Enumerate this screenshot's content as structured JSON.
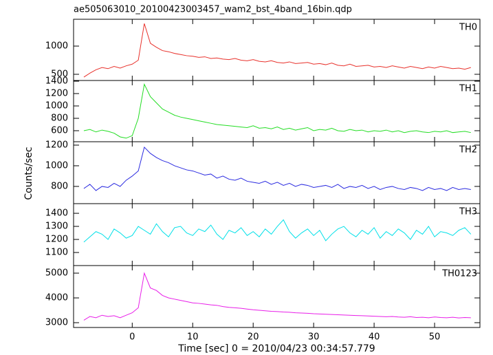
{
  "chart_data": [
    {
      "type": "line",
      "title": "ae505063010_20100423003457_wam2_bst_4band_16bin.qdp",
      "x": [
        -8,
        -7,
        -6,
        -5,
        -4,
        -3,
        -2,
        -1,
        0,
        1,
        2,
        3,
        4,
        5,
        6,
        7,
        8,
        9,
        10,
        11,
        12,
        13,
        14,
        15,
        16,
        17,
        18,
        19,
        20,
        21,
        22,
        23,
        24,
        25,
        26,
        27,
        28,
        29,
        30,
        31,
        32,
        33,
        34,
        35,
        36,
        37,
        38,
        39,
        40,
        41,
        42,
        43,
        44,
        45,
        46,
        47,
        48,
        49,
        50,
        51,
        52,
        53,
        54,
        55,
        56
      ],
      "series": [
        {
          "name": "TH0",
          "color": "#e8302a",
          "values": [
            450,
            520,
            580,
            620,
            600,
            640,
            610,
            650,
            680,
            750,
            1400,
            1050,
            980,
            920,
            900,
            870,
            850,
            830,
            820,
            800,
            810,
            780,
            790,
            770,
            760,
            780,
            750,
            740,
            760,
            730,
            720,
            740,
            710,
            700,
            720,
            690,
            700,
            710,
            680,
            690,
            670,
            700,
            660,
            650,
            680,
            640,
            650,
            660,
            630,
            640,
            620,
            650,
            630,
            610,
            640,
            620,
            600,
            630,
            610,
            640,
            620,
            600,
            610,
            590,
            620
          ]
        }
      ],
      "xlim": [
        -9.7,
        57.5
      ],
      "xticks": [
        0,
        10,
        20,
        30,
        40,
        50
      ],
      "ylim": [
        390,
        1476
      ],
      "yticks": [
        500,
        1000
      ]
    },
    {
      "type": "line",
      "x": [
        -8,
        -7,
        -6,
        -5,
        -4,
        -3,
        -2,
        -1,
        0,
        1,
        2,
        3,
        4,
        5,
        6,
        7,
        8,
        9,
        10,
        11,
        12,
        13,
        14,
        15,
        16,
        17,
        18,
        19,
        20,
        21,
        22,
        23,
        24,
        25,
        26,
        27,
        28,
        29,
        30,
        31,
        32,
        33,
        34,
        35,
        36,
        37,
        38,
        39,
        40,
        41,
        42,
        43,
        44,
        45,
        46,
        47,
        48,
        49,
        50,
        51,
        52,
        53,
        54,
        55,
        56
      ],
      "series": [
        {
          "name": "TH1",
          "color": "#22dd22",
          "values": [
            600,
            620,
            580,
            610,
            590,
            560,
            500,
            480,
            520,
            800,
            1350,
            1150,
            1050,
            950,
            900,
            850,
            820,
            800,
            780,
            760,
            740,
            720,
            700,
            690,
            680,
            670,
            660,
            650,
            680,
            640,
            650,
            630,
            660,
            620,
            640,
            610,
            630,
            650,
            600,
            620,
            610,
            640,
            600,
            590,
            620,
            600,
            610,
            580,
            600,
            590,
            610,
            580,
            600,
            570,
            590,
            600,
            580,
            570,
            590,
            580,
            600,
            570,
            580,
            590,
            570
          ]
        }
      ],
      "xlim": [
        -9.7,
        57.5
      ],
      "xticks": [
        0,
        10,
        20,
        30,
        40,
        50
      ],
      "ylim": [
        422,
        1411
      ],
      "yticks": [
        600,
        800,
        1000,
        1200,
        1400
      ]
    },
    {
      "type": "line",
      "ylabel": "Counts/sec",
      "x": [
        -8,
        -7,
        -6,
        -5,
        -4,
        -3,
        -2,
        -1,
        0,
        1,
        2,
        3,
        4,
        5,
        6,
        7,
        8,
        9,
        10,
        11,
        12,
        13,
        14,
        15,
        16,
        17,
        18,
        19,
        20,
        21,
        22,
        23,
        24,
        25,
        26,
        27,
        28,
        29,
        30,
        31,
        32,
        33,
        34,
        35,
        36,
        37,
        38,
        39,
        40,
        41,
        42,
        43,
        44,
        45,
        46,
        47,
        48,
        49,
        50,
        51,
        52,
        53,
        54,
        55,
        56
      ],
      "series": [
        {
          "name": "TH2",
          "color": "#2a2ae0",
          "values": [
            780,
            820,
            760,
            800,
            790,
            830,
            800,
            860,
            900,
            950,
            1180,
            1120,
            1080,
            1050,
            1030,
            1000,
            980,
            960,
            950,
            930,
            910,
            920,
            880,
            900,
            870,
            860,
            880,
            850,
            840,
            830,
            850,
            820,
            840,
            810,
            830,
            800,
            820,
            810,
            790,
            800,
            810,
            790,
            820,
            780,
            800,
            790,
            810,
            780,
            800,
            770,
            790,
            800,
            780,
            770,
            790,
            780,
            760,
            790,
            770,
            780,
            760,
            790,
            770,
            780,
            770
          ]
        }
      ],
      "xlim": [
        -9.7,
        57.5
      ],
      "xticks": [
        0,
        10,
        20,
        30,
        40,
        50
      ],
      "ylim": [
        633,
        1233
      ],
      "yticks": [
        800,
        1000,
        1200
      ]
    },
    {
      "type": "line",
      "x": [
        -8,
        -7,
        -6,
        -5,
        -4,
        -3,
        -2,
        -1,
        0,
        1,
        2,
        3,
        4,
        5,
        6,
        7,
        8,
        9,
        10,
        11,
        12,
        13,
        14,
        15,
        16,
        17,
        18,
        19,
        20,
        21,
        22,
        23,
        24,
        25,
        26,
        27,
        28,
        29,
        30,
        31,
        32,
        33,
        34,
        35,
        36,
        37,
        38,
        39,
        40,
        41,
        42,
        43,
        44,
        45,
        46,
        47,
        48,
        49,
        50,
        51,
        52,
        53,
        54,
        55,
        56
      ],
      "series": [
        {
          "name": "TH3",
          "color": "#00e0e8",
          "values": [
            1180,
            1220,
            1260,
            1240,
            1200,
            1280,
            1250,
            1210,
            1230,
            1300,
            1270,
            1240,
            1320,
            1260,
            1220,
            1290,
            1300,
            1250,
            1230,
            1280,
            1260,
            1310,
            1240,
            1200,
            1270,
            1250,
            1290,
            1230,
            1260,
            1220,
            1280,
            1240,
            1300,
            1350,
            1260,
            1210,
            1250,
            1280,
            1230,
            1270,
            1190,
            1240,
            1280,
            1300,
            1250,
            1220,
            1270,
            1240,
            1290,
            1210,
            1260,
            1230,
            1280,
            1250,
            1200,
            1270,
            1240,
            1300,
            1220,
            1260,
            1250,
            1230,
            1270,
            1290,
            1240
          ]
        }
      ],
      "xlim": [
        -9.7,
        57.5
      ],
      "xticks": [
        0,
        10,
        20,
        30,
        40,
        50
      ],
      "ylim": [
        1000,
        1474
      ],
      "yticks": [
        1100,
        1200,
        1300,
        1400
      ]
    },
    {
      "type": "line",
      "xlabel": "Time [sec] 0 = 2010/04/23 00:34:57.779",
      "x": [
        -8,
        -7,
        -6,
        -5,
        -4,
        -3,
        -2,
        -1,
        0,
        1,
        2,
        3,
        4,
        5,
        6,
        7,
        8,
        9,
        10,
        11,
        12,
        13,
        14,
        15,
        16,
        17,
        18,
        19,
        20,
        21,
        22,
        23,
        24,
        25,
        26,
        27,
        28,
        29,
        30,
        31,
        32,
        33,
        34,
        35,
        36,
        37,
        38,
        39,
        40,
        41,
        42,
        43,
        44,
        45,
        46,
        47,
        48,
        49,
        50,
        51,
        52,
        53,
        54,
        55,
        56
      ],
      "series": [
        {
          "name": "TH0123",
          "color": "#e81ce8",
          "values": [
            3100,
            3250,
            3200,
            3300,
            3250,
            3280,
            3200,
            3300,
            3400,
            3600,
            5000,
            4400,
            4300,
            4100,
            4000,
            3950,
            3900,
            3850,
            3800,
            3780,
            3750,
            3720,
            3700,
            3650,
            3620,
            3600,
            3580,
            3550,
            3520,
            3500,
            3480,
            3460,
            3450,
            3430,
            3420,
            3400,
            3390,
            3380,
            3360,
            3350,
            3340,
            3330,
            3320,
            3310,
            3300,
            3290,
            3280,
            3270,
            3260,
            3250,
            3240,
            3250,
            3230,
            3220,
            3240,
            3210,
            3220,
            3200,
            3230,
            3210,
            3200,
            3220,
            3190,
            3210,
            3200
          ]
        }
      ],
      "xlim": [
        -9.7,
        57.5
      ],
      "xticks": [
        0,
        10,
        20,
        30,
        40,
        50
      ],
      "ylim": [
        2806,
        5306
      ],
      "yticks": [
        3000,
        4000,
        5000
      ]
    }
  ]
}
